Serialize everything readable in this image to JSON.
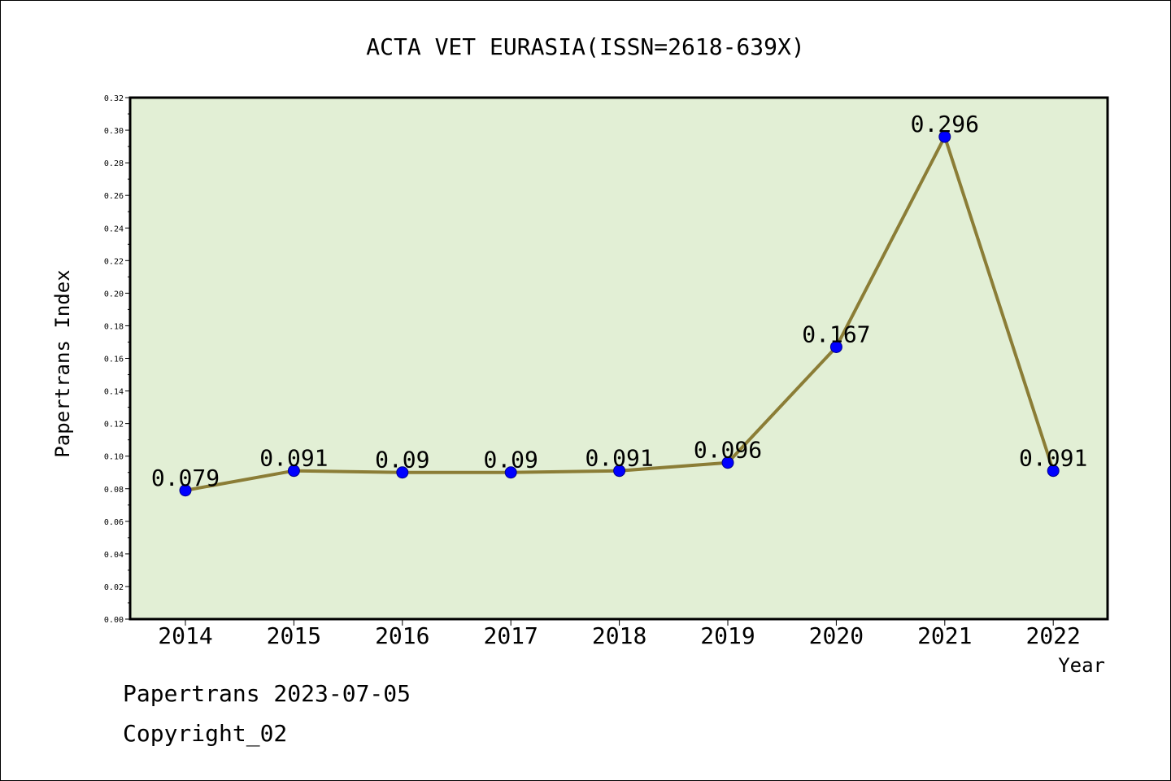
{
  "chart_data": {
    "type": "line",
    "title": "ACTA VET EURASIA(ISSN=2618-639X)",
    "xlabel": "Year",
    "ylabel": "Papertrans Index",
    "categories": [
      "2014",
      "2015",
      "2016",
      "2017",
      "2018",
      "2019",
      "2020",
      "2021",
      "2022"
    ],
    "series": [
      {
        "values": [
          0.079,
          0.091,
          0.09,
          0.09,
          0.091,
          0.096,
          0.167,
          0.296,
          0.091
        ],
        "labels": [
          "0.079",
          "0.091",
          "0.09",
          "0.09",
          "0.091",
          "0.096",
          "0.167",
          "0.296",
          "0.091"
        ]
      }
    ],
    "ylim": [
      0,
      0.32
    ],
    "yticks": [
      "0.00",
      "0.02",
      "0.04",
      "0.06",
      "0.08",
      "0.10",
      "0.12",
      "0.14",
      "0.16",
      "0.18",
      "0.20",
      "0.22",
      "0.24",
      "0.26",
      "0.28",
      "0.30",
      "0.32"
    ],
    "grid": false,
    "legend": "none",
    "colors": {
      "plot_background": "#e2efd5",
      "line": "#8b7d36",
      "marker": "#0000ff",
      "marker_edge": "#00008b"
    }
  },
  "footer": {
    "date_line": "Papertrans 2023-07-05",
    "copyright": "Copyright_02"
  }
}
